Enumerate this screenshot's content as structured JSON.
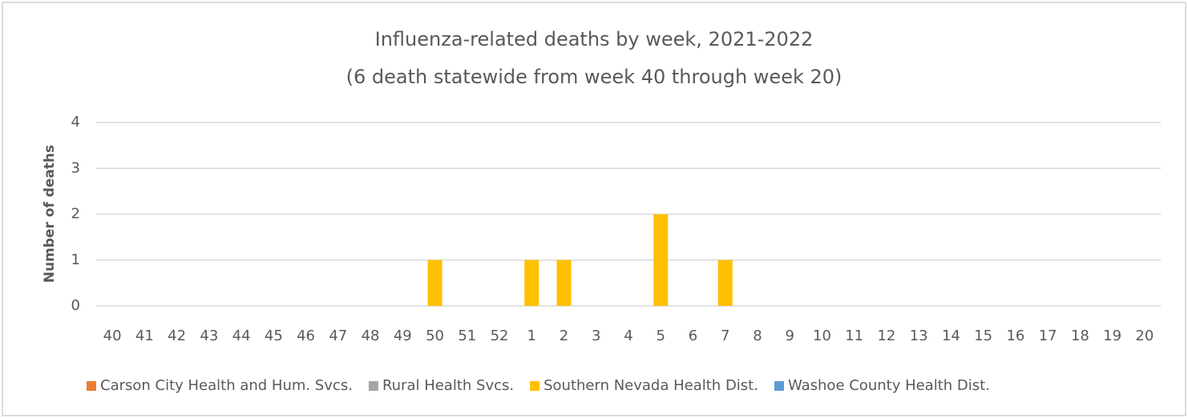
{
  "chart_data": {
    "type": "stacked_bar",
    "title": "Influenza-related deaths by week, 2021-2022",
    "subtitle": "(6 death statewide from week 40 through week 20)",
    "y_label": "Number of deaths",
    "categories": [
      "40",
      "41",
      "42",
      "43",
      "44",
      "45",
      "46",
      "47",
      "48",
      "49",
      "50",
      "51",
      "52",
      "1",
      "2",
      "3",
      "4",
      "5",
      "6",
      "7",
      "8",
      "9",
      "10",
      "11",
      "12",
      "13",
      "14",
      "15",
      "16",
      "17",
      "18",
      "19",
      "20"
    ],
    "series": [
      {
        "name": "Carson City Health and Hum. Svcs.",
        "color": "#ed7d31",
        "values": [
          0,
          0,
          0,
          0,
          0,
          0,
          0,
          0,
          0,
          0,
          0,
          0,
          0,
          0,
          0,
          0,
          0,
          0,
          0,
          0,
          0,
          null,
          null,
          null,
          null,
          null,
          null,
          null,
          null,
          null,
          null,
          null,
          null
        ]
      },
      {
        "name": "Rural Health Svcs.",
        "color": "#a5a5a5",
        "values": [
          0,
          0,
          0,
          0,
          0,
          0,
          0,
          0,
          0,
          0,
          0,
          0,
          0,
          0,
          0,
          0,
          0,
          0,
          0,
          0,
          0,
          null,
          null,
          null,
          null,
          null,
          null,
          null,
          null,
          null,
          null,
          null,
          null
        ]
      },
      {
        "name": "Southern Nevada Health Dist.",
        "color": "#ffc000",
        "values": [
          0,
          0,
          0,
          0,
          0,
          0,
          0,
          0,
          0,
          0,
          1,
          0,
          0,
          1,
          1,
          0,
          0,
          2,
          0,
          1,
          0,
          null,
          null,
          null,
          null,
          null,
          null,
          null,
          null,
          null,
          null,
          null,
          null
        ]
      },
      {
        "name": "Washoe County Health Dist.",
        "color": "#5b9bd5",
        "values": [
          0,
          0,
          0,
          0,
          0,
          0,
          0,
          0,
          0,
          0,
          0,
          0,
          0,
          0,
          0,
          0,
          0,
          0,
          0,
          0,
          0,
          null,
          null,
          null,
          null,
          null,
          null,
          null,
          null,
          null,
          null,
          null,
          null
        ]
      }
    ],
    "ylim": [
      0,
      4
    ],
    "yticks": [
      0,
      1,
      2,
      3,
      4
    ],
    "grid": true,
    "legend": "bottom"
  }
}
